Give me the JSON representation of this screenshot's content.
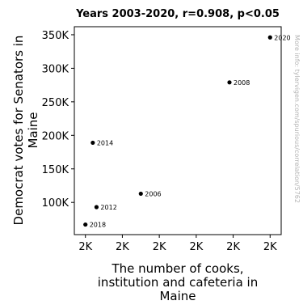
{
  "chart_data": {
    "type": "scatter",
    "title": "Years 2003-2020, r=0.908, p<0.05",
    "xlabel_lines": [
      "The number of cooks,",
      "institution and cafeteria in",
      "Maine"
    ],
    "ylabel_lines": [
      "Democrat votes for Senators in",
      "Maine"
    ],
    "x_tick_labels": [
      "2K",
      "2K",
      "2K",
      "2K",
      "2K",
      "2K"
    ],
    "x_ticks": [
      1940,
      1950,
      1960,
      1970,
      1980,
      1990
    ],
    "xlim": [
      1937,
      1993
    ],
    "y_tick_labels": [
      "100K",
      "150K",
      "200K",
      "250K",
      "300K",
      "350K"
    ],
    "y_ticks": [
      100000,
      150000,
      200000,
      250000,
      300000,
      350000
    ],
    "ylim": [
      52000,
      362000
    ],
    "points": [
      {
        "label": "2020",
        "x": 1990,
        "y": 346000
      },
      {
        "label": "2008",
        "x": 1979,
        "y": 279000
      },
      {
        "label": "2014",
        "x": 1942,
        "y": 189000
      },
      {
        "label": "2006",
        "x": 1955,
        "y": 113000
      },
      {
        "label": "2012",
        "x": 1943,
        "y": 93000
      },
      {
        "label": "2018",
        "x": 1940,
        "y": 67000
      }
    ],
    "point_color": "#000000",
    "grid": false
  },
  "watermark": "More info: tylervigen.com/spurious/correlation/5762"
}
